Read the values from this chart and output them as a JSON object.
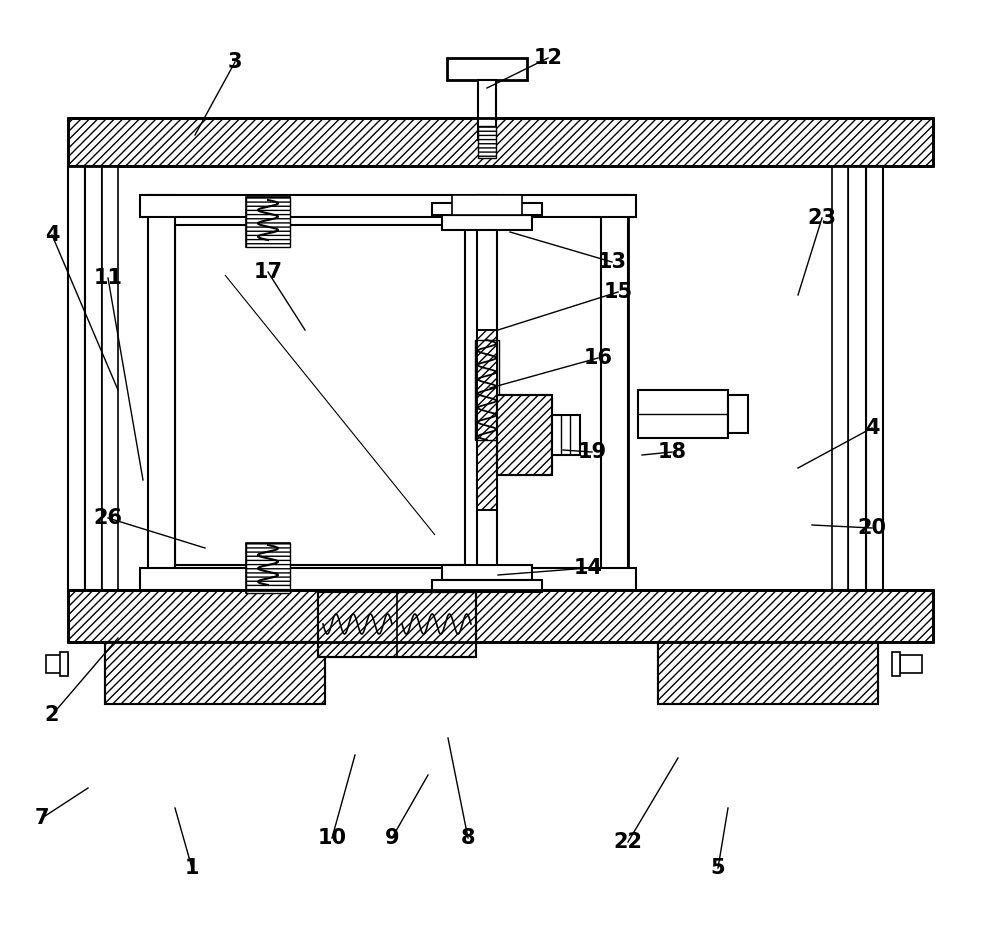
{
  "bg_color": "#ffffff",
  "figsize": [
    10.0,
    9.36
  ],
  "dpi": 100,
  "annotations": [
    [
      "3",
      235,
      62,
      195,
      135
    ],
    [
      "12",
      548,
      58,
      487,
      88
    ],
    [
      "4",
      52,
      235,
      118,
      390
    ],
    [
      "11",
      108,
      278,
      143,
      480
    ],
    [
      "13",
      612,
      262,
      510,
      232
    ],
    [
      "15",
      618,
      292,
      498,
      330
    ],
    [
      "17",
      268,
      272,
      305,
      330
    ],
    [
      "16",
      598,
      358,
      490,
      388
    ],
    [
      "4",
      872,
      428,
      798,
      468
    ],
    [
      "18",
      672,
      452,
      642,
      455
    ],
    [
      "19",
      592,
      452,
      563,
      450
    ],
    [
      "23",
      822,
      218,
      798,
      295
    ],
    [
      "20",
      872,
      528,
      812,
      525
    ],
    [
      "26",
      108,
      518,
      205,
      548
    ],
    [
      "14",
      588,
      568,
      498,
      575
    ],
    [
      "2",
      52,
      715,
      118,
      638
    ],
    [
      "7",
      42,
      818,
      88,
      788
    ],
    [
      "1",
      192,
      868,
      175,
      808
    ],
    [
      "10",
      332,
      838,
      355,
      755
    ],
    [
      "9",
      392,
      838,
      428,
      775
    ],
    [
      "8",
      468,
      838,
      448,
      738
    ],
    [
      "22",
      628,
      842,
      678,
      758
    ],
    [
      "5",
      718,
      868,
      728,
      808
    ]
  ]
}
